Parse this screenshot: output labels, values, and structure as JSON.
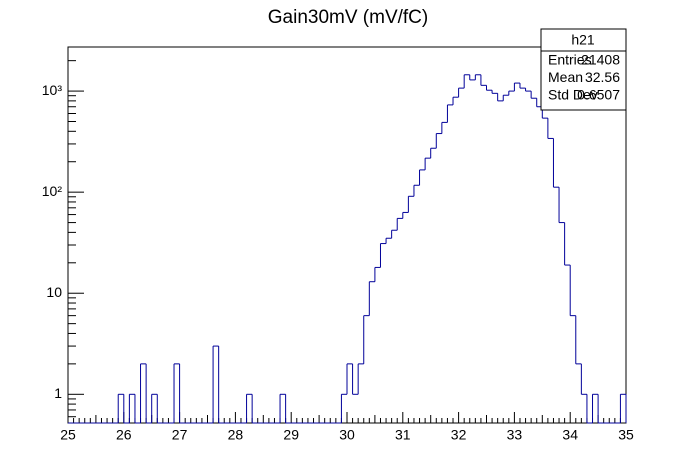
{
  "chart_data": {
    "type": "histogram",
    "title": "Gain30mV (mV/fC)",
    "bins": [
      25,
      25.1,
      25.2,
      25.3,
      25.4,
      25.5,
      25.6,
      25.7,
      25.8,
      25.9,
      26,
      26.1,
      26.2,
      26.3,
      26.4,
      26.5,
      26.6,
      26.7,
      26.8,
      26.9,
      27,
      27.1,
      27.2,
      27.3,
      27.4,
      27.5,
      27.6,
      27.7,
      27.8,
      27.9,
      28,
      28.1,
      28.2,
      28.3,
      28.4,
      28.5,
      28.6,
      28.7,
      28.8,
      28.9,
      29,
      29.1,
      29.2,
      29.3,
      29.4,
      29.5,
      29.6,
      29.7,
      29.8,
      29.9,
      30,
      30.1,
      30.2,
      30.3,
      30.4,
      30.5,
      30.6,
      30.7,
      30.8,
      30.9,
      31,
      31.1,
      31.2,
      31.3,
      31.4,
      31.5,
      31.6,
      31.7,
      31.8,
      31.9,
      32,
      32.1,
      32.2,
      32.3,
      32.4,
      32.5,
      32.6,
      32.7,
      32.8,
      32.9,
      33,
      33.1,
      33.2,
      33.3,
      33.4,
      33.5,
      33.6,
      33.7,
      33.8,
      33.9,
      34,
      34.1,
      34.2,
      34.3,
      34.4,
      34.5,
      34.6,
      34.7,
      34.8,
      34.9,
      35
    ],
    "values": [
      0,
      0,
      0,
      0,
      0,
      0,
      0,
      0,
      0,
      1,
      0,
      1,
      0,
      2,
      0,
      1,
      0,
      0,
      0,
      2,
      0,
      0,
      0,
      0,
      0,
      0,
      3,
      0,
      0,
      0,
      0,
      0,
      1,
      0,
      0,
      0,
      0,
      0,
      1,
      0,
      0,
      0,
      0,
      0,
      0,
      0,
      0,
      0,
      0,
      1,
      2,
      1,
      2,
      6,
      13,
      18,
      31,
      35,
      42,
      55,
      63,
      91,
      117,
      166,
      217,
      272,
      380,
      490,
      730,
      870,
      1070,
      1450,
      1290,
      1450,
      1140,
      1020,
      950,
      800,
      910,
      1000,
      1200,
      1070,
      1000,
      850,
      700,
      540,
      340,
      112,
      50,
      19,
      6,
      2,
      1,
      0,
      1,
      0,
      0,
      0,
      0,
      1
    ],
    "color": "#000099",
    "xlim": [
      25,
      35
    ],
    "xticks": [
      25,
      26,
      27,
      28,
      29,
      30,
      31,
      32,
      33,
      34,
      35
    ],
    "ylim": [
      0.52,
      2730
    ],
    "log_y": true,
    "yticks": [
      1,
      10,
      {
        "value": 100,
        "label": "10²"
      },
      {
        "value": 1000,
        "label": "10³"
      }
    ],
    "stats": {
      "title": "h21",
      "rows": [
        {
          "label": "Entries",
          "value": 21408
        },
        {
          "label": "Mean",
          "value": 32.56
        },
        {
          "label": "Std Dev",
          "value": 0.6507
        }
      ]
    }
  }
}
